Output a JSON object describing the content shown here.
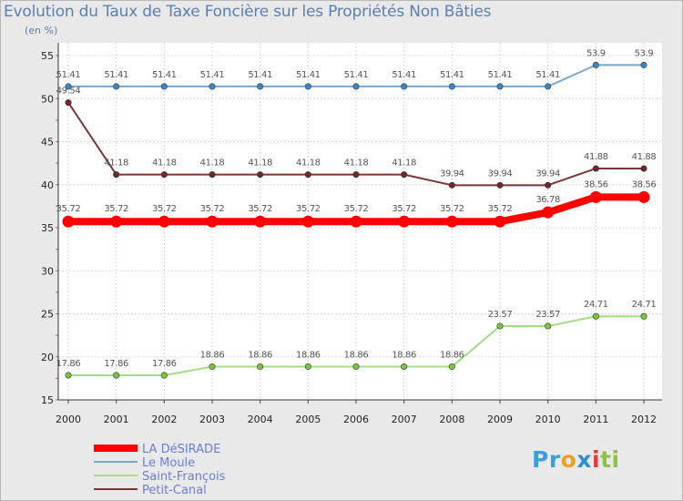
{
  "chart_data": {
    "type": "line",
    "title": "Evolution du Taux de Taxe Foncière sur les Propriétés Non Bâties",
    "ylabel": "(en %)",
    "xlabel": "",
    "categories": [
      "2000",
      "2001",
      "2002",
      "2003",
      "2004",
      "2005",
      "2006",
      "2007",
      "2008",
      "2009",
      "2010",
      "2011",
      "2012"
    ],
    "ylim": [
      15,
      55
    ],
    "yticks": [
      "15",
      "20",
      "25",
      "30",
      "35",
      "40",
      "45",
      "50",
      "55"
    ],
    "grid": true,
    "series": [
      {
        "name": "Le Moule",
        "color": "#7aa6cc",
        "marker": "#3b86c4",
        "values": [
          51.41,
          51.41,
          51.41,
          51.41,
          51.41,
          51.41,
          51.41,
          51.41,
          51.41,
          51.41,
          51.41,
          53.9,
          53.9
        ],
        "labels": [
          "51.41",
          "51.41",
          "51.41",
          "51.41",
          "51.41",
          "51.41",
          "51.41",
          "51.41",
          "51.41",
          "51.41",
          "51.41",
          "53.9",
          "53.9"
        ]
      },
      {
        "name": "Petit-Canal",
        "color": "#7b3636",
        "marker": "#6e2828",
        "values": [
          49.54,
          41.18,
          41.18,
          41.18,
          41.18,
          41.18,
          41.18,
          41.18,
          39.94,
          39.94,
          39.94,
          41.88,
          41.88
        ],
        "labels": [
          "49.54",
          "41.18",
          "41.18",
          "41.18",
          "41.18",
          "41.18",
          "41.18",
          "41.18",
          "39.94",
          "39.94",
          "39.94",
          "41.88",
          "41.88"
        ]
      },
      {
        "name": "LA DéSIRADE",
        "color": "#ff0000",
        "marker": "#ff0000",
        "values": [
          35.72,
          35.72,
          35.72,
          35.72,
          35.72,
          35.72,
          35.72,
          35.72,
          35.72,
          35.72,
          36.78,
          38.56,
          38.56
        ],
        "labels": [
          "35.72",
          "35.72",
          "35.72",
          "35.72",
          "35.72",
          "35.72",
          "35.72",
          "35.72",
          "35.72",
          "35.72",
          "36.78",
          "38.56",
          "38.56"
        ]
      },
      {
        "name": "Saint-François",
        "color": "#a4dc86",
        "marker": "#7cc63e",
        "values": [
          17.86,
          17.86,
          17.86,
          18.86,
          18.86,
          18.86,
          18.86,
          18.86,
          18.86,
          23.57,
          23.57,
          24.71,
          24.71
        ],
        "labels": [
          "17.86",
          "17.86",
          "17.86",
          "18.86",
          "18.86",
          "18.86",
          "18.86",
          "18.86",
          "18.86",
          "23.57",
          "23.57",
          "24.71",
          "24.71"
        ]
      }
    ],
    "legend": {
      "placement": "bottom-left",
      "order": [
        "LA DéSIRADE",
        "Le Moule",
        "Saint-François",
        "Petit-Canal"
      ]
    }
  },
  "logo": {
    "parts": [
      "Pr",
      "o",
      "x",
      "i",
      "ti"
    ]
  }
}
